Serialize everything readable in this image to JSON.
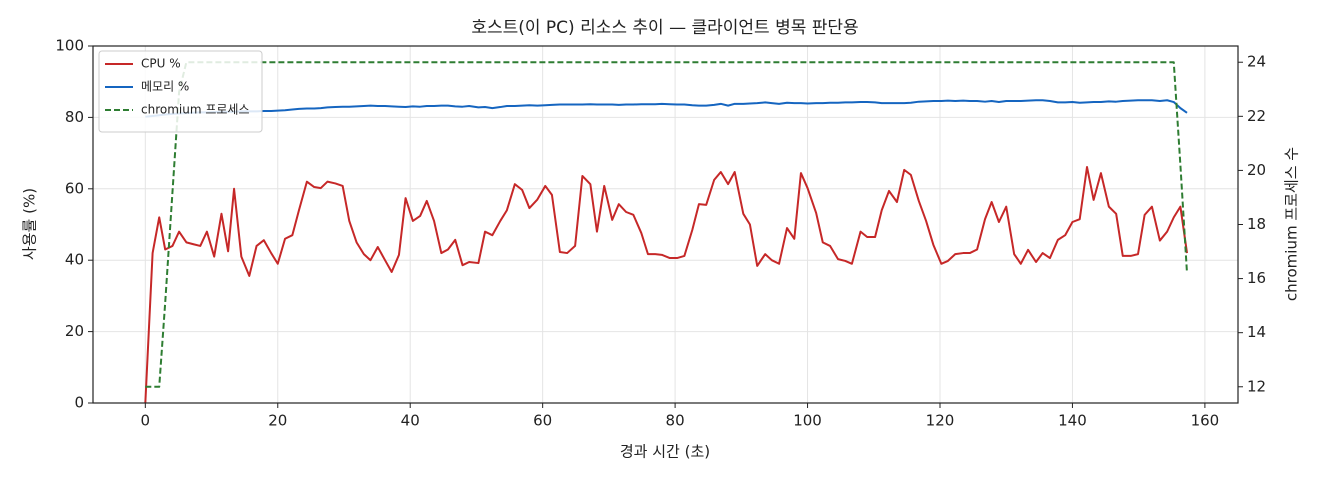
{
  "chart_data": {
    "type": "line",
    "title": "호스트(이 PC) 리소스 추이 — 클라이언트 병목 판단용",
    "xlabel": "경과 시간 (초)",
    "ylabel": "사용률 (%)",
    "y2label": "chromium 프로세스 수",
    "x": [
      0,
      1.1,
      2.1,
      3.0,
      4.1,
      5.1,
      6.2,
      7.2,
      8.3,
      9.3,
      10.4,
      11.5,
      12.5,
      13.4,
      14.5,
      15.7,
      16.8,
      17.9,
      19.0,
      20.0,
      21.1,
      22.2,
      23.2,
      24.4,
      25.5,
      26.5,
      27.5,
      28.7,
      29.8,
      30.8,
      31.9,
      33.0,
      34.0,
      35.1,
      36.2,
      37.2,
      38.3,
      39.3,
      40.4,
      41.5,
      42.5,
      43.6,
      44.7,
      45.7,
      46.8,
      47.9,
      48.9,
      50.3,
      51.3,
      52.4,
      53.6,
      54.6,
      55.8,
      56.9,
      58.0,
      59.2,
      60.4,
      61.4,
      62.6,
      63.7,
      64.9,
      66.0,
      67.2,
      68.2,
      69.3,
      70.5,
      71.5,
      72.6,
      73.7,
      74.9,
      75.9,
      77.0,
      78.0,
      79.2,
      80.3,
      81.4,
      82.6,
      83.6,
      84.7,
      85.9,
      86.9,
      88.0,
      89.0,
      90.3,
      91.3,
      92.4,
      93.6,
      94.6,
      95.7,
      96.9,
      98.0,
      99.0,
      100.0,
      101.3,
      102.3,
      103.4,
      104.6,
      105.7,
      106.7,
      108.0,
      109.0,
      110.2,
      111.2,
      112.3,
      113.5,
      114.6,
      115.6,
      116.8,
      117.9,
      119.0,
      120.2,
      121.2,
      122.3,
      123.5,
      124.5,
      125.6,
      126.8,
      127.8,
      128.9,
      130.0,
      131.2,
      132.2,
      133.3,
      134.5,
      135.5,
      136.6,
      137.8,
      138.9,
      140.0,
      141.1,
      142.2,
      143.2,
      144.3,
      145.5,
      146.6,
      147.6,
      148.8,
      149.9,
      150.9,
      152.0,
      153.2,
      154.3,
      155.3,
      156.3,
      157.3
    ],
    "series": [
      {
        "name": "CPU %",
        "color": "#c62828",
        "style": "solid",
        "values": [
          0,
          42,
          52,
          43,
          44,
          48,
          45,
          44.5,
          44,
          48,
          41,
          53,
          42.5,
          60,
          41,
          35.6,
          44,
          45.6,
          42,
          39,
          46,
          47,
          54,
          62,
          60.5,
          60.2,
          62,
          61.5,
          60.8,
          51,
          45,
          41.7,
          40,
          43.7,
          40,
          36.7,
          41.5,
          57.4,
          51,
          52.4,
          56.6,
          51,
          42,
          43,
          45.7,
          38.6,
          39.5,
          39.2,
          48,
          47,
          51,
          54,
          61.3,
          59.7,
          54.6,
          57,
          60.8,
          58.3,
          42.3,
          42,
          44,
          63.6,
          61.3,
          48,
          60.8,
          51.3,
          55.7,
          53.5,
          52.7,
          47.6,
          41.7,
          41.7,
          41.5,
          40.6,
          40.6,
          41.2,
          48.5,
          55.7,
          55.5,
          62.5,
          64.7,
          61.3,
          64.7,
          53,
          50,
          38.4,
          41.7,
          40,
          39,
          49,
          46,
          64.4,
          60.2,
          53.2,
          45,
          44,
          40.3,
          39.8,
          39,
          48,
          46.5,
          46.5,
          54,
          59.4,
          56.3,
          65.3,
          63.9,
          56.6,
          51,
          44.3,
          39,
          39.8,
          41.7,
          42,
          42,
          43,
          51.5,
          56.3,
          50.7,
          55,
          41.7,
          39,
          42.9,
          39.5,
          42,
          40.6,
          45.7,
          47,
          50.7,
          51.5,
          66.1,
          56.9,
          64.4,
          55,
          53,
          41.2,
          41.2,
          41.7,
          52.7,
          55,
          45.5,
          48,
          52,
          55,
          42
        ]
      },
      {
        "name": "메모리 %",
        "color": "#1565c0",
        "style": "solid",
        "values": [
          80.2,
          80.4,
          80.6,
          80.8,
          81.0,
          81.1,
          81.2,
          81.3,
          81.4,
          81.4,
          81.5,
          81.5,
          81.6,
          81.6,
          81.7,
          81.7,
          81.7,
          81.8,
          81.8,
          81.9,
          82.0,
          82.2,
          82.4,
          82.5,
          82.5,
          82.6,
          82.8,
          82.9,
          83.0,
          83.0,
          83.1,
          83.2,
          83.3,
          83.2,
          83.2,
          83.1,
          83.0,
          82.9,
          83.1,
          83.0,
          83.2,
          83.2,
          83.3,
          83.3,
          83.1,
          83.0,
          83.2,
          82.8,
          82.9,
          82.6,
          82.9,
          83.2,
          83.2,
          83.3,
          83.4,
          83.3,
          83.4,
          83.5,
          83.6,
          83.6,
          83.6,
          83.6,
          83.7,
          83.6,
          83.6,
          83.6,
          83.5,
          83.6,
          83.6,
          83.7,
          83.7,
          83.7,
          83.8,
          83.7,
          83.6,
          83.6,
          83.4,
          83.3,
          83.3,
          83.5,
          83.8,
          83.3,
          83.8,
          83.8,
          83.9,
          84.0,
          84.2,
          84.0,
          83.8,
          84.1,
          84.0,
          84.0,
          83.9,
          84.0,
          84.0,
          84.1,
          84.1,
          84.2,
          84.2,
          84.3,
          84.3,
          84.2,
          84.0,
          84.0,
          84.0,
          84.0,
          84.1,
          84.4,
          84.5,
          84.6,
          84.6,
          84.7,
          84.6,
          84.7,
          84.6,
          84.6,
          84.4,
          84.6,
          84.3,
          84.6,
          84.6,
          84.6,
          84.7,
          84.8,
          84.8,
          84.6,
          84.2,
          84.2,
          84.3,
          84.1,
          84.2,
          84.3,
          84.3,
          84.5,
          84.4,
          84.6,
          84.7,
          84.8,
          84.8,
          84.8,
          84.6,
          84.8,
          84.3,
          82.6,
          81.3
        ]
      },
      {
        "name": "chromium 프로세스",
        "color": "#2e7d32",
        "style": "dashed",
        "axis": "y2",
        "values": [
          12,
          12,
          12,
          15.1,
          19.2,
          22.9,
          24,
          24,
          24,
          24,
          24,
          24,
          24,
          24,
          24,
          24,
          24,
          24,
          24,
          24,
          24,
          24,
          24,
          24,
          24,
          24,
          24,
          24,
          24,
          24,
          24,
          24,
          24,
          24,
          24,
          24,
          24,
          24,
          24,
          24,
          24,
          24,
          24,
          24,
          24,
          24,
          24,
          24,
          24,
          24,
          24,
          24,
          24,
          24,
          24,
          24,
          24,
          24,
          24,
          24,
          24,
          24,
          24,
          24,
          24,
          24,
          24,
          24,
          24,
          24,
          24,
          24,
          24,
          24,
          24,
          24,
          24,
          24,
          24,
          24,
          24,
          24,
          24,
          24,
          24,
          24,
          24,
          24,
          24,
          24,
          24,
          24,
          24,
          24,
          24,
          24,
          24,
          24,
          24,
          24,
          24,
          24,
          24,
          24,
          24,
          24,
          24,
          24,
          24,
          24,
          24,
          24,
          24,
          24,
          24,
          24,
          24,
          24,
          24,
          24,
          24,
          24,
          24,
          24,
          24,
          24,
          24,
          24,
          24,
          24,
          24,
          24,
          24,
          24,
          24,
          24,
          24,
          24,
          24,
          24,
          24,
          24,
          24,
          20.2,
          16.2
        ]
      }
    ],
    "xlim": [
      -7.9,
      165.0
    ],
    "xticks": [
      0,
      20,
      40,
      60,
      80,
      100,
      120,
      140,
      160
    ],
    "ylim": [
      0,
      100
    ],
    "yticks": [
      0,
      20,
      40,
      60,
      80,
      100
    ],
    "y2lim": [
      11.4,
      24.6
    ],
    "y2ticks": [
      12,
      14,
      16,
      18,
      20,
      22,
      24
    ],
    "grid": true,
    "legend": "upper left"
  }
}
